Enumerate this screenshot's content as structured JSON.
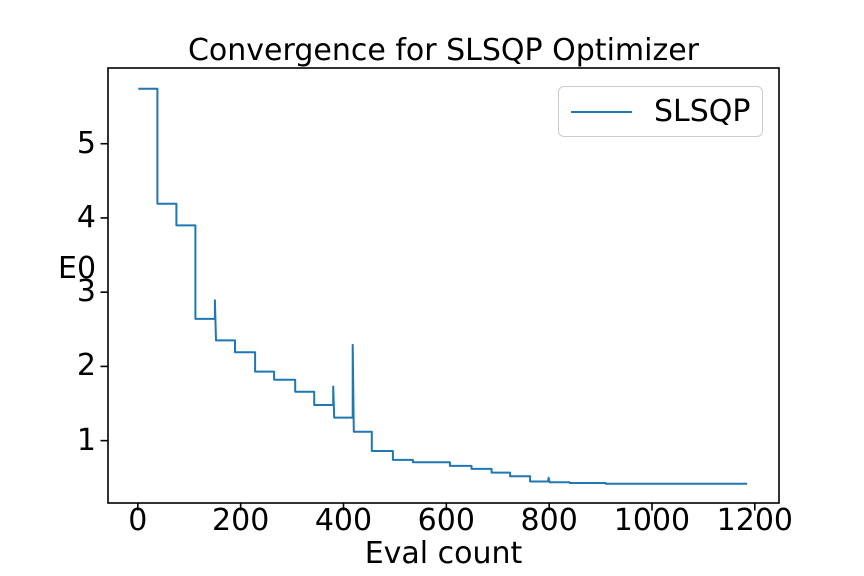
{
  "figure": {
    "background": "#ffffff",
    "text_color": "#000000",
    "axis_color": "#000000"
  },
  "chart_data": {
    "type": "line",
    "title": "Convergence for SLSQP Optimizer",
    "xlabel": "Eval count",
    "ylabel": "E0",
    "grid": false,
    "xlim": [
      -58,
      1247
    ],
    "ylim": [
      0.16,
      6.02
    ],
    "xticks": [
      0,
      200,
      400,
      600,
      800,
      1000,
      1200
    ],
    "yticks": [
      1,
      2,
      3,
      4,
      5
    ],
    "legend": {
      "position": "upper right",
      "entries": [
        "SLSQP"
      ]
    },
    "series": [
      {
        "name": "SLSQP",
        "color": "#1f77b4",
        "points": [
          [
            1,
            5.74
          ],
          [
            38,
            5.74
          ],
          [
            38,
            4.19
          ],
          [
            75,
            4.19
          ],
          [
            75,
            3.9
          ],
          [
            112,
            3.9
          ],
          [
            112,
            2.64
          ],
          [
            150,
            2.64
          ],
          [
            150,
            2.89
          ],
          [
            152,
            2.35
          ],
          [
            189,
            2.35
          ],
          [
            189,
            2.19
          ],
          [
            228,
            2.19
          ],
          [
            228,
            1.93
          ],
          [
            265,
            1.93
          ],
          [
            265,
            1.82
          ],
          [
            306,
            1.82
          ],
          [
            306,
            1.66
          ],
          [
            343,
            1.66
          ],
          [
            343,
            1.48
          ],
          [
            380,
            1.48
          ],
          [
            380,
            1.73
          ],
          [
            382,
            1.31
          ],
          [
            418,
            1.31
          ],
          [
            418,
            2.29
          ],
          [
            420,
            1.12
          ],
          [
            455,
            1.12
          ],
          [
            455,
            0.86
          ],
          [
            496,
            0.86
          ],
          [
            496,
            0.74
          ],
          [
            535,
            0.74
          ],
          [
            535,
            0.71
          ],
          [
            607,
            0.71
          ],
          [
            607,
            0.66
          ],
          [
            649,
            0.66
          ],
          [
            649,
            0.62
          ],
          [
            688,
            0.62
          ],
          [
            688,
            0.57
          ],
          [
            724,
            0.57
          ],
          [
            724,
            0.52
          ],
          [
            763,
            0.52
          ],
          [
            763,
            0.45
          ],
          [
            798,
            0.45
          ],
          [
            799,
            0.5
          ],
          [
            801,
            0.44
          ],
          [
            840,
            0.44
          ],
          [
            840,
            0.43
          ],
          [
            910,
            0.43
          ],
          [
            910,
            0.42
          ],
          [
            1185,
            0.42
          ]
        ]
      }
    ]
  }
}
